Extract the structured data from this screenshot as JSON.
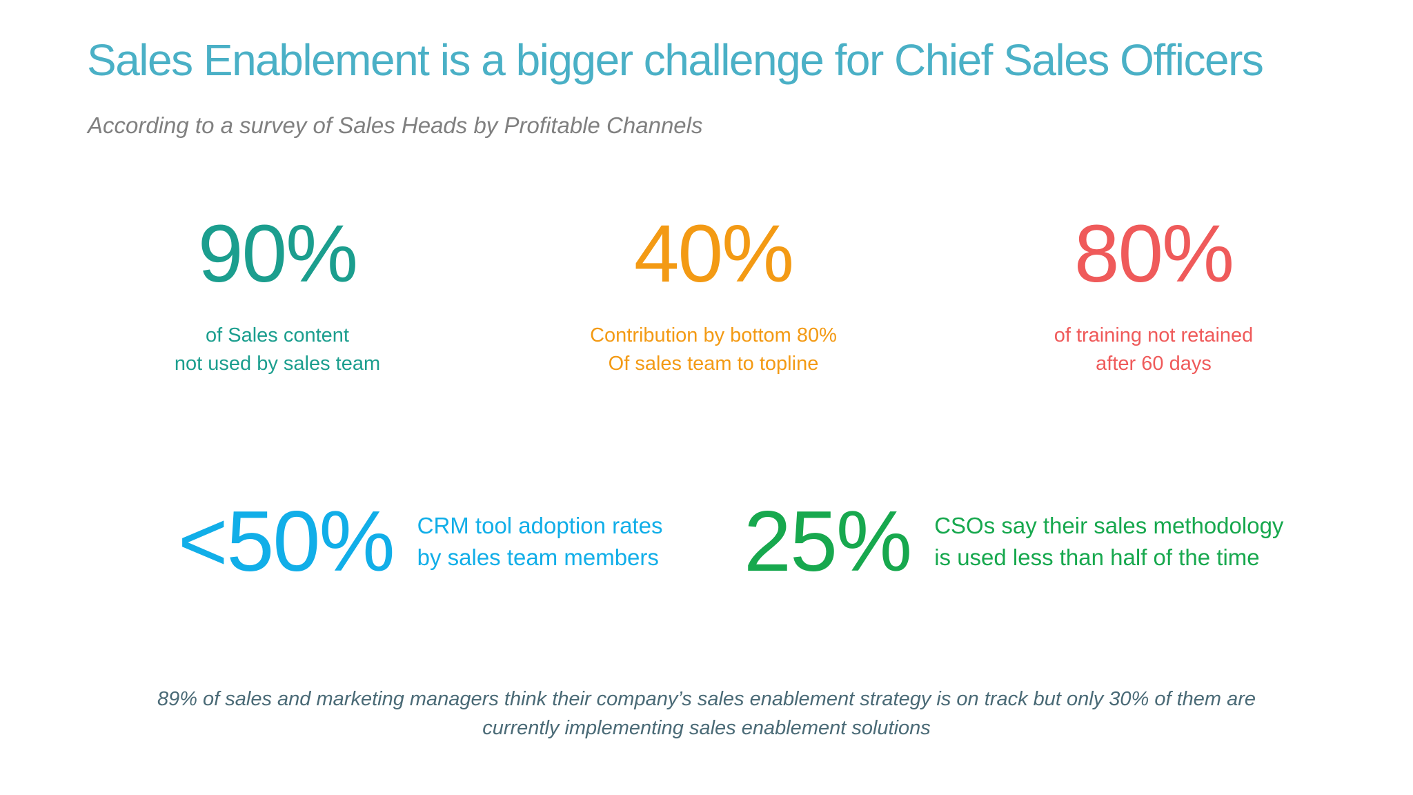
{
  "title": "Sales Enablement is a bigger challenge for Chief Sales Officers",
  "subtitle": "According to a survey of Sales Heads by Profitable Channels",
  "stats_top": [
    {
      "value": "90%",
      "line1": "of Sales content",
      "line2": "not used by sales team",
      "color": "#1b9e8e"
    },
    {
      "value": "40%",
      "line1": "Contribution by bottom 80%",
      "line2": "Of sales team to topline",
      "color": "#f39a14"
    },
    {
      "value": "80%",
      "line1": "of training not retained",
      "line2": "after 60 days",
      "color": "#ef5a5a"
    }
  ],
  "stats_bottom": [
    {
      "value": "<50%",
      "line1": "CRM tool adoption rates",
      "line2": "by sales team members",
      "color": "#11aee8"
    },
    {
      "value": "25%",
      "line1": "CSOs say their sales methodology",
      "line2": "is used less than half of the time",
      "color": "#17a84e"
    }
  ],
  "footnote": {
    "line1": "89% of sales and marketing managers think their company’s sales enablement strategy is on track but only 30% of them are",
    "line2": "currently implementing sales enablement solutions"
  }
}
